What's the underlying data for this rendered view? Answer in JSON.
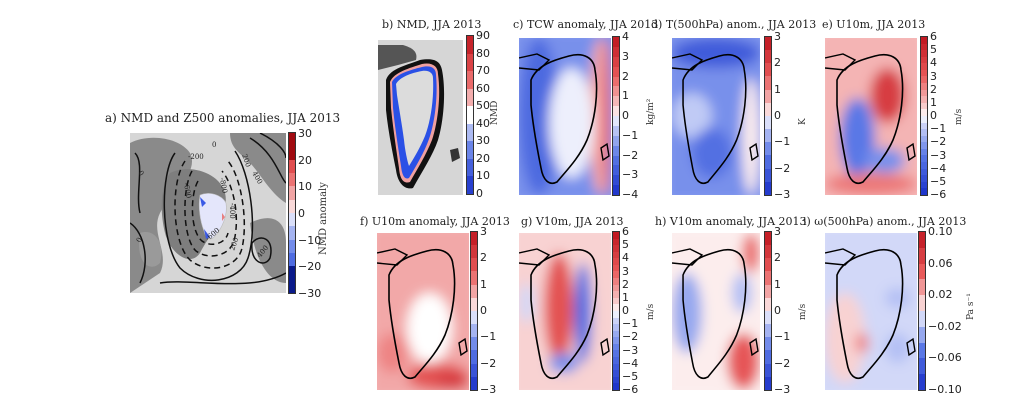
{
  "chart_data": [
    {
      "id": "a",
      "type": "heatmap",
      "title": "a) NMD and Z500 anomalies, JJA 2013",
      "colorbar": {
        "label": "NMD anomaly",
        "ticks": [
          "30",
          "20",
          "10",
          "0",
          "−10",
          "−20",
          "−30"
        ],
        "range": [
          -30,
          30
        ],
        "cmap": "blue-white-red"
      },
      "contour_labels": [
        "0",
        "-200",
        "200",
        "-400",
        "-600",
        "-600",
        "-800",
        "-600",
        "400",
        "-400",
        "200",
        "400",
        "0",
        "400"
      ],
      "legend": "none"
    },
    {
      "id": "b",
      "type": "heatmap",
      "title": "b) NMD, JJA 2013",
      "colorbar": {
        "label": "NMD",
        "ticks": [
          "90",
          "80",
          "70",
          "60",
          "50",
          "40",
          "30",
          "20",
          "10",
          "0"
        ],
        "range": [
          0,
          90
        ],
        "cmap": "blue-white-red"
      }
    },
    {
      "id": "c",
      "type": "heatmap",
      "title": "c) TCW anomaly, JJA 2013",
      "colorbar": {
        "label": "kg/m²",
        "ticks": [
          "4",
          "3",
          "2",
          "1",
          "0",
          "−1",
          "−2",
          "−3",
          "−4"
        ],
        "range": [
          -4,
          4
        ],
        "cmap": "blue-white-red"
      }
    },
    {
      "id": "d",
      "type": "heatmap",
      "title": "d) T(500hPa) anom., JJA 2013",
      "colorbar": {
        "label": "K",
        "ticks": [
          "3",
          "2",
          "1",
          "0",
          "−1",
          "−2",
          "−3"
        ],
        "range": [
          -3,
          3
        ],
        "cmap": "blue-white-red"
      }
    },
    {
      "id": "e",
      "type": "heatmap",
      "title": "e) U10m, JJA 2013",
      "colorbar": {
        "label": "m/s",
        "ticks": [
          "6",
          "5",
          "4",
          "3",
          "2",
          "1",
          "0",
          "−1",
          "−2",
          "−3",
          "−4",
          "−5",
          "−6"
        ],
        "range": [
          -6,
          6
        ],
        "cmap": "blue-white-red"
      }
    },
    {
      "id": "f",
      "type": "heatmap",
      "title": "f) U10m anomaly, JJA 2013",
      "colorbar": {
        "label": "",
        "ticks": [
          "3",
          "2",
          "1",
          "0",
          "−1",
          "−2",
          "−3"
        ],
        "range": [
          -3,
          3
        ],
        "cmap": "blue-white-red"
      }
    },
    {
      "id": "g",
      "type": "heatmap",
      "title": "g) V10m, JJA 2013",
      "colorbar": {
        "label": "m/s",
        "ticks": [
          "6",
          "5",
          "4",
          "3",
          "2",
          "1",
          "0",
          "−1",
          "−2",
          "−3",
          "−4",
          "−5",
          "−6"
        ],
        "range": [
          -6,
          6
        ],
        "cmap": "blue-white-red"
      }
    },
    {
      "id": "h",
      "type": "heatmap",
      "title": "h) V10m anomaly, JJA 2013",
      "colorbar": {
        "label": "m/s",
        "ticks": [
          "3",
          "2",
          "1",
          "0",
          "−1",
          "−2",
          "−3"
        ],
        "range": [
          -3,
          3
        ],
        "cmap": "blue-white-red"
      }
    },
    {
      "id": "i",
      "type": "heatmap",
      "title": "i) ω(500hPa) anom., JJA 2013",
      "colorbar": {
        "label": "Pa s⁻¹",
        "ticks": [
          "0.10",
          "0.06",
          "0.02",
          "−0.02",
          "−0.06",
          "−0.10"
        ],
        "range": [
          -0.1,
          0.1
        ],
        "cmap": "blue-white-red"
      }
    }
  ],
  "colors": {
    "red_max": "#b2182b",
    "red_mid": "#e8505a",
    "red_light": "#f4c0c0",
    "white": "#ffffff",
    "blue_light": "#c8d0f4",
    "blue_mid": "#5070e0",
    "blue_max": "#1a30c8",
    "land_gray": "#8a8a8a",
    "sea_gray": "#d6d6d6",
    "navy_max": "#08106a",
    "darkred_max": "#8a0a0a"
  }
}
